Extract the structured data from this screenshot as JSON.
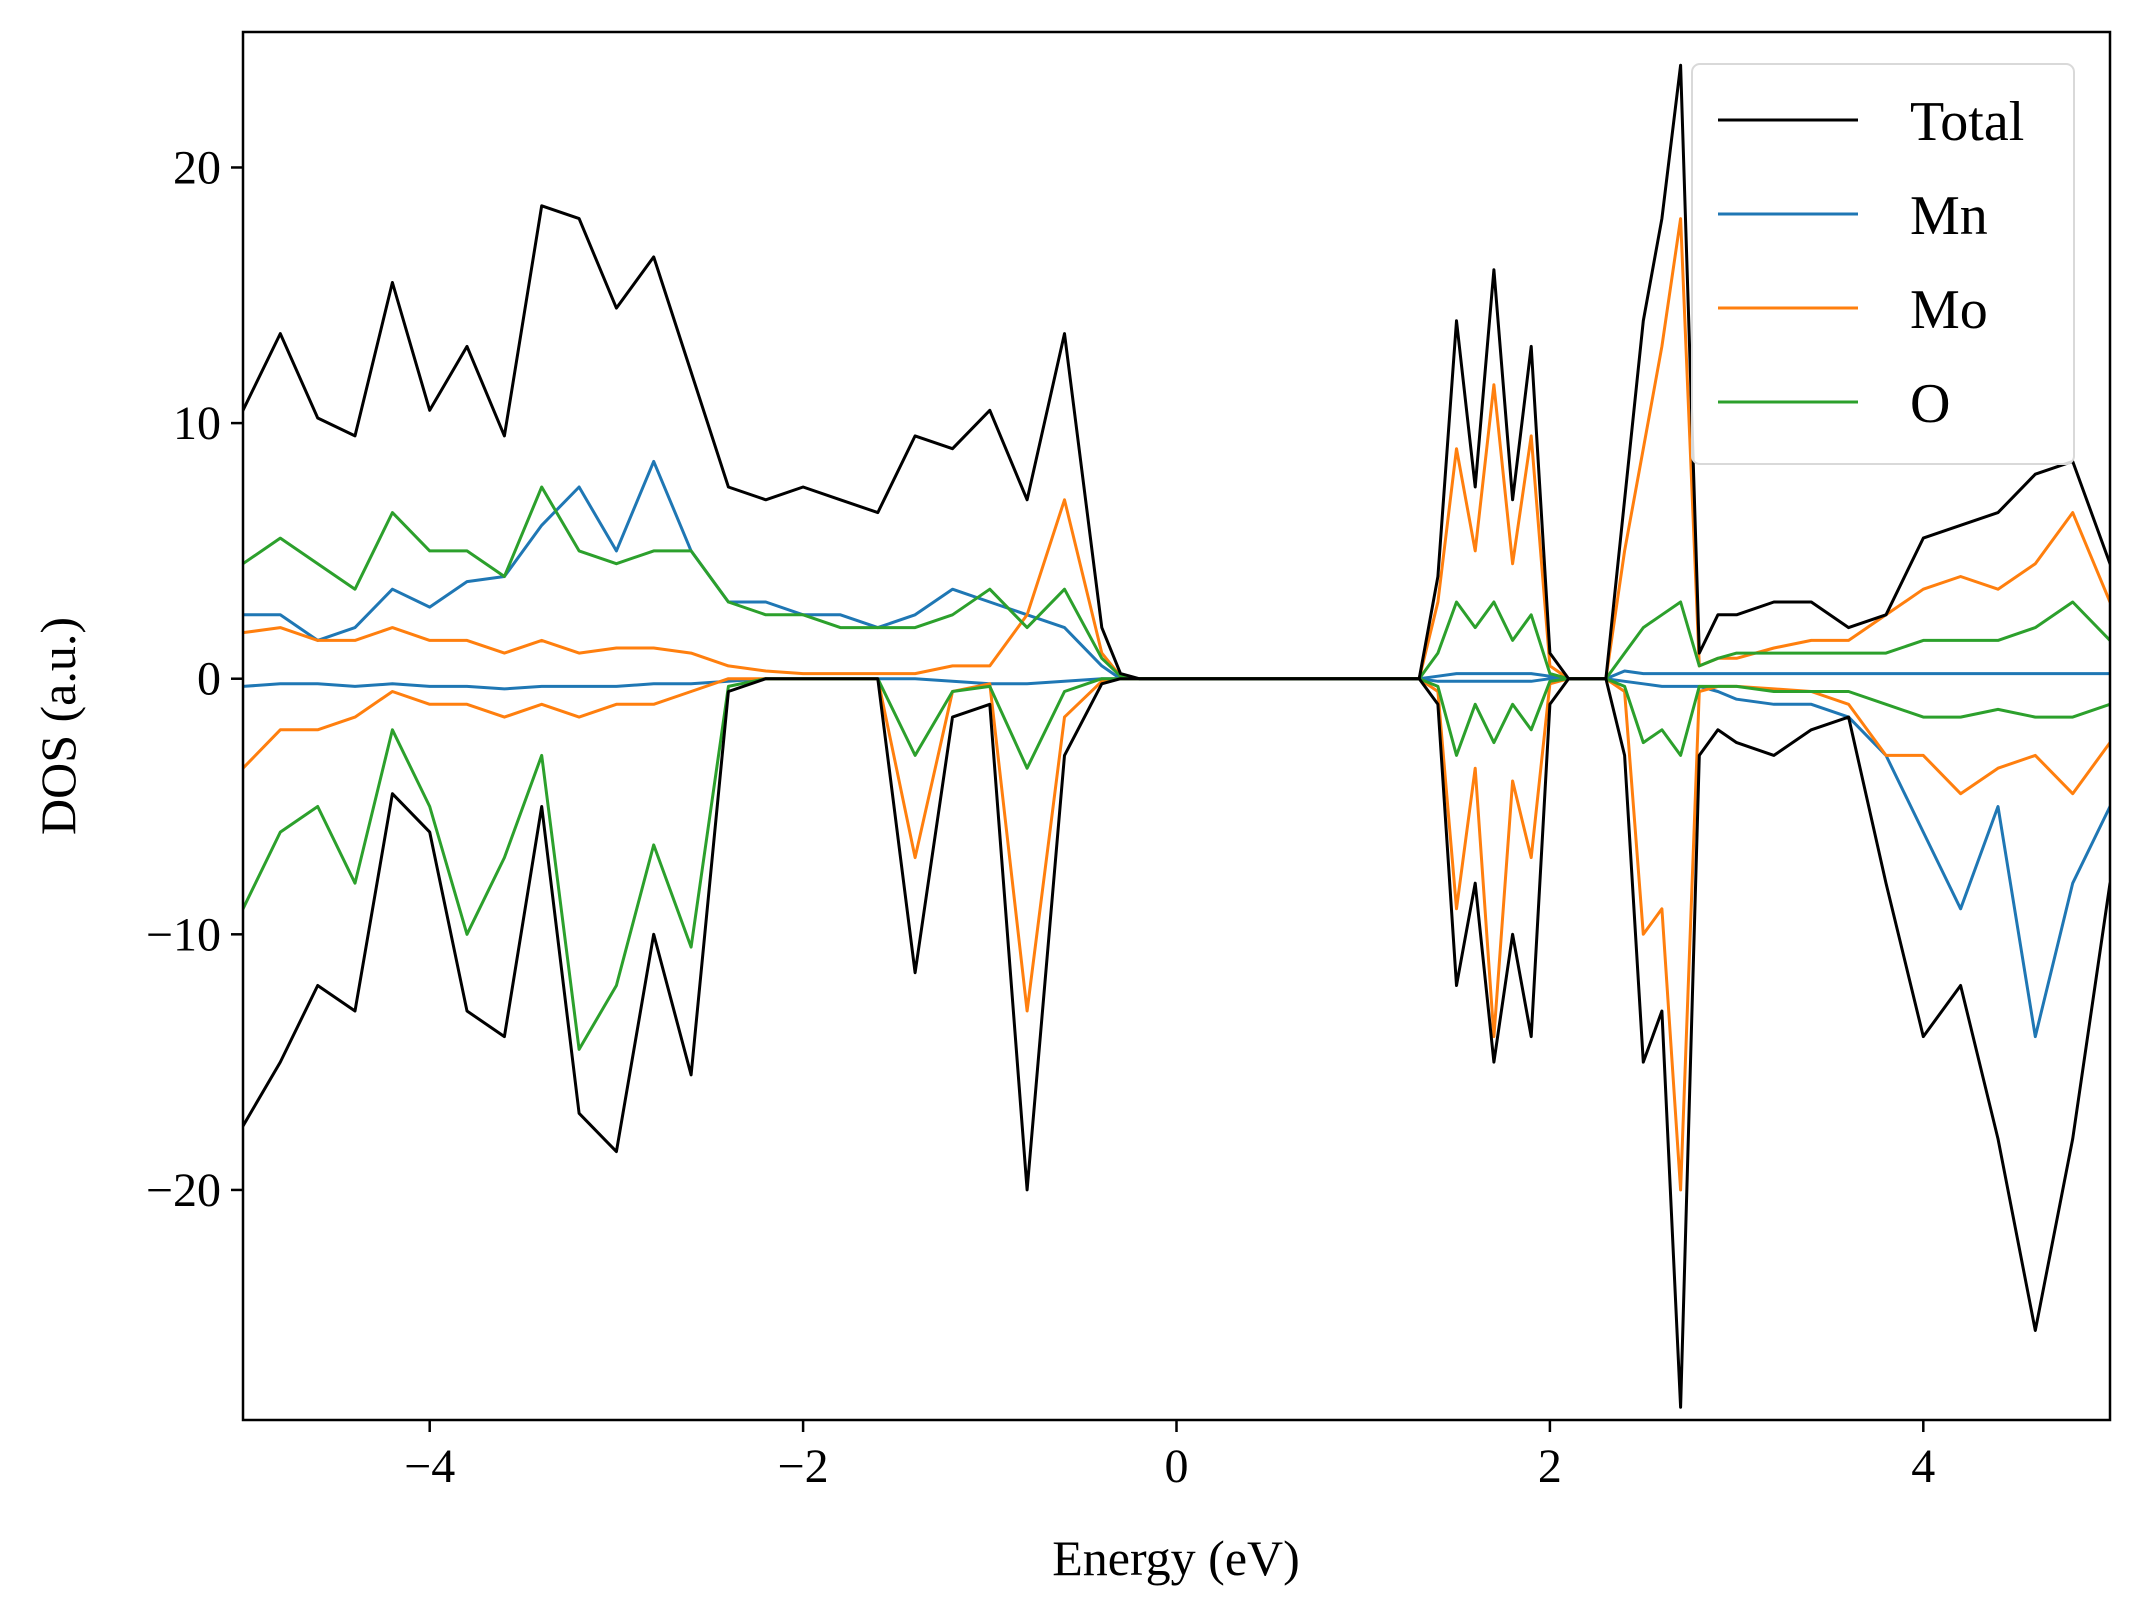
{
  "chart_data": {
    "type": "line",
    "title": "",
    "xlabel": "Energy (eV)",
    "ylabel": "DOS (a.u.)",
    "xlim": [
      -5,
      5
    ],
    "ylim": [
      -29,
      25.3
    ],
    "xticks": [
      -4,
      -2,
      0,
      2,
      4
    ],
    "yticks": [
      -20,
      -10,
      0,
      10,
      20
    ],
    "xtick_labels": [
      "−4",
      "−2",
      "0",
      "2",
      "4"
    ],
    "ytick_labels": [
      "−20",
      "−10",
      "0",
      "10",
      "20"
    ],
    "grid": false,
    "legend_position": "top-right",
    "x": [
      -5.0,
      -4.8,
      -4.6,
      -4.4,
      -4.2,
      -4.0,
      -3.8,
      -3.6,
      -3.4,
      -3.2,
      -3.0,
      -2.8,
      -2.6,
      -2.4,
      -2.2,
      -2.0,
      -1.8,
      -1.6,
      -1.4,
      -1.2,
      -1.0,
      -0.8,
      -0.6,
      -0.4,
      -0.3,
      -0.2,
      0.0,
      0.5,
      1.0,
      1.3,
      1.4,
      1.5,
      1.6,
      1.7,
      1.8,
      1.9,
      2.0,
      2.1,
      2.2,
      2.3,
      2.4,
      2.5,
      2.6,
      2.7,
      2.8,
      2.9,
      3.0,
      3.2,
      3.4,
      3.6,
      3.8,
      4.0,
      4.2,
      4.4,
      4.6,
      4.8,
      5.0
    ],
    "series": [
      {
        "name": "Total",
        "color": "#000000",
        "role": "up",
        "values": [
          10.5,
          13.5,
          10.2,
          9.5,
          15.5,
          10.5,
          13.0,
          9.5,
          18.5,
          18.0,
          14.5,
          16.5,
          12.0,
          7.5,
          7.0,
          7.5,
          7.0,
          6.5,
          9.5,
          9.0,
          10.5,
          7.0,
          13.5,
          2.0,
          0.2,
          0,
          0,
          0,
          0,
          0,
          4.0,
          14.0,
          7.5,
          16.0,
          7.0,
          13.0,
          1.0,
          0,
          0,
          0,
          7.0,
          14.0,
          18.0,
          24.0,
          1.0,
          2.5,
          2.5,
          3.0,
          3.0,
          2.0,
          2.5,
          5.5,
          6.0,
          6.5,
          8.0,
          8.5,
          4.5
        ]
      },
      {
        "name": "Total-down",
        "color": "#000000",
        "role": "down",
        "values": [
          -17.5,
          -15.0,
          -12.0,
          -13.0,
          -4.5,
          -6.0,
          -13.0,
          -14.0,
          -5.0,
          -17.0,
          -18.5,
          -10.0,
          -15.5,
          -0.5,
          0,
          0,
          0,
          0,
          -11.5,
          -1.5,
          -1.0,
          -20.0,
          -3.0,
          -0.2,
          0,
          0,
          0,
          0,
          0,
          0,
          -1.0,
          -12.0,
          -8.0,
          -15.0,
          -10.0,
          -14.0,
          -1.0,
          0,
          0,
          0,
          -3.0,
          -15.0,
          -13.0,
          -28.5,
          -3.0,
          -2.0,
          -2.5,
          -3.0,
          -2.0,
          -1.5,
          -8.0,
          -14.0,
          -12.0,
          -18.0,
          -25.5,
          -18.0,
          -8.0
        ]
      },
      {
        "name": "Mn",
        "color": "#1f77b4",
        "role": "up",
        "values": [
          2.5,
          2.5,
          1.5,
          2.0,
          3.5,
          2.8,
          3.8,
          4.0,
          6.0,
          7.5,
          5.0,
          8.5,
          5.0,
          3.0,
          3.0,
          2.5,
          2.5,
          2.0,
          2.5,
          3.5,
          3.0,
          2.5,
          2.0,
          0.5,
          0,
          0,
          0,
          0,
          0,
          0,
          0.1,
          0.2,
          0.2,
          0.2,
          0.2,
          0.2,
          0.1,
          0,
          0,
          0,
          0.3,
          0.2,
          0.2,
          0.2,
          0.2,
          0.2,
          0.2,
          0.2,
          0.2,
          0.2,
          0.2,
          0.2,
          0.2,
          0.2,
          0.2,
          0.2,
          0.2
        ]
      },
      {
        "name": "Mn-down",
        "color": "#1f77b4",
        "role": "down",
        "values": [
          -0.3,
          -0.2,
          -0.2,
          -0.3,
          -0.2,
          -0.3,
          -0.3,
          -0.4,
          -0.3,
          -0.3,
          -0.3,
          -0.2,
          -0.2,
          -0.1,
          0,
          0,
          0,
          0,
          0,
          -0.1,
          -0.2,
          -0.2,
          -0.1,
          0,
          0,
          0,
          0,
          0,
          0,
          0,
          -0.1,
          -0.1,
          -0.1,
          -0.1,
          -0.1,
          -0.1,
          0,
          0,
          0,
          0,
          -0.1,
          -0.2,
          -0.3,
          -0.3,
          -0.3,
          -0.5,
          -0.8,
          -1.0,
          -1.0,
          -1.5,
          -3.0,
          -6.0,
          -9.0,
          -5.0,
          -14.0,
          -8.0,
          -5.0
        ]
      },
      {
        "name": "Mo",
        "color": "#ff7f0e",
        "role": "up",
        "values": [
          1.8,
          2.0,
          1.5,
          1.5,
          2.0,
          1.5,
          1.5,
          1.0,
          1.5,
          1.0,
          1.2,
          1.2,
          1.0,
          0.5,
          0.3,
          0.2,
          0.2,
          0.2,
          0.2,
          0.5,
          0.5,
          2.5,
          7.0,
          1.0,
          0.1,
          0,
          0,
          0,
          0,
          0,
          3.0,
          9.0,
          5.0,
          11.5,
          4.5,
          9.5,
          0.5,
          0,
          0,
          0,
          5.0,
          9.0,
          13.0,
          18.0,
          0.5,
          0.8,
          0.8,
          1.2,
          1.5,
          1.5,
          2.5,
          3.5,
          4.0,
          3.5,
          4.5,
          6.5,
          3.0
        ]
      },
      {
        "name": "Mo-down",
        "color": "#ff7f0e",
        "role": "down",
        "values": [
          -3.5,
          -2.0,
          -2.0,
          -1.5,
          -0.5,
          -1.0,
          -1.0,
          -1.5,
          -1.0,
          -1.5,
          -1.0,
          -1.0,
          -0.5,
          0,
          0,
          0,
          0,
          0,
          -7.0,
          -0.5,
          -0.2,
          -13.0,
          -1.5,
          -0.1,
          0,
          0,
          0,
          0,
          0,
          0,
          -0.5,
          -9.0,
          -3.5,
          -14.0,
          -4.0,
          -7.0,
          -0.2,
          0,
          0,
          0,
          -0.5,
          -10.0,
          -9.0,
          -20.0,
          -0.5,
          -0.3,
          -0.3,
          -0.4,
          -0.5,
          -1.0,
          -3.0,
          -3.0,
          -4.5,
          -3.5,
          -3.0,
          -4.5,
          -2.5
        ]
      },
      {
        "name": "O",
        "color": "#2ca02c",
        "role": "up",
        "values": [
          4.5,
          5.5,
          4.5,
          3.5,
          6.5,
          5.0,
          5.0,
          4.0,
          7.5,
          5.0,
          4.5,
          5.0,
          5.0,
          3.0,
          2.5,
          2.5,
          2.0,
          2.0,
          2.0,
          2.5,
          3.5,
          2.0,
          3.5,
          0.8,
          0.1,
          0,
          0,
          0,
          0,
          0,
          1.0,
          3.0,
          2.0,
          3.0,
          1.5,
          2.5,
          0.2,
          0,
          0,
          0,
          1.0,
          2.0,
          2.5,
          3.0,
          0.5,
          0.8,
          1.0,
          1.0,
          1.0,
          1.0,
          1.0,
          1.5,
          1.5,
          1.5,
          2.0,
          3.0,
          1.5
        ]
      },
      {
        "name": "O-down",
        "color": "#2ca02c",
        "role": "down",
        "values": [
          -9.0,
          -6.0,
          -5.0,
          -8.0,
          -2.0,
          -5.0,
          -10.0,
          -7.0,
          -3.0,
          -14.5,
          -12.0,
          -6.5,
          -10.5,
          -0.3,
          0,
          0,
          0,
          0,
          -3.0,
          -0.5,
          -0.3,
          -3.5,
          -0.5,
          0,
          0,
          0,
          0,
          0,
          0,
          0,
          -0.3,
          -3.0,
          -1.0,
          -2.5,
          -1.0,
          -2.0,
          -0.1,
          0,
          0,
          0,
          -0.3,
          -2.5,
          -2.0,
          -3.0,
          -0.3,
          -0.3,
          -0.3,
          -0.5,
          -0.5,
          -0.5,
          -1.0,
          -1.5,
          -1.5,
          -1.2,
          -1.5,
          -1.5,
          -1.0
        ]
      }
    ],
    "legend": [
      {
        "label": "Total",
        "color": "#000000"
      },
      {
        "label": "Mn",
        "color": "#1f77b4"
      },
      {
        "label": "Mo",
        "color": "#ff7f0e"
      },
      {
        "label": "O",
        "color": "#2ca02c"
      }
    ]
  }
}
